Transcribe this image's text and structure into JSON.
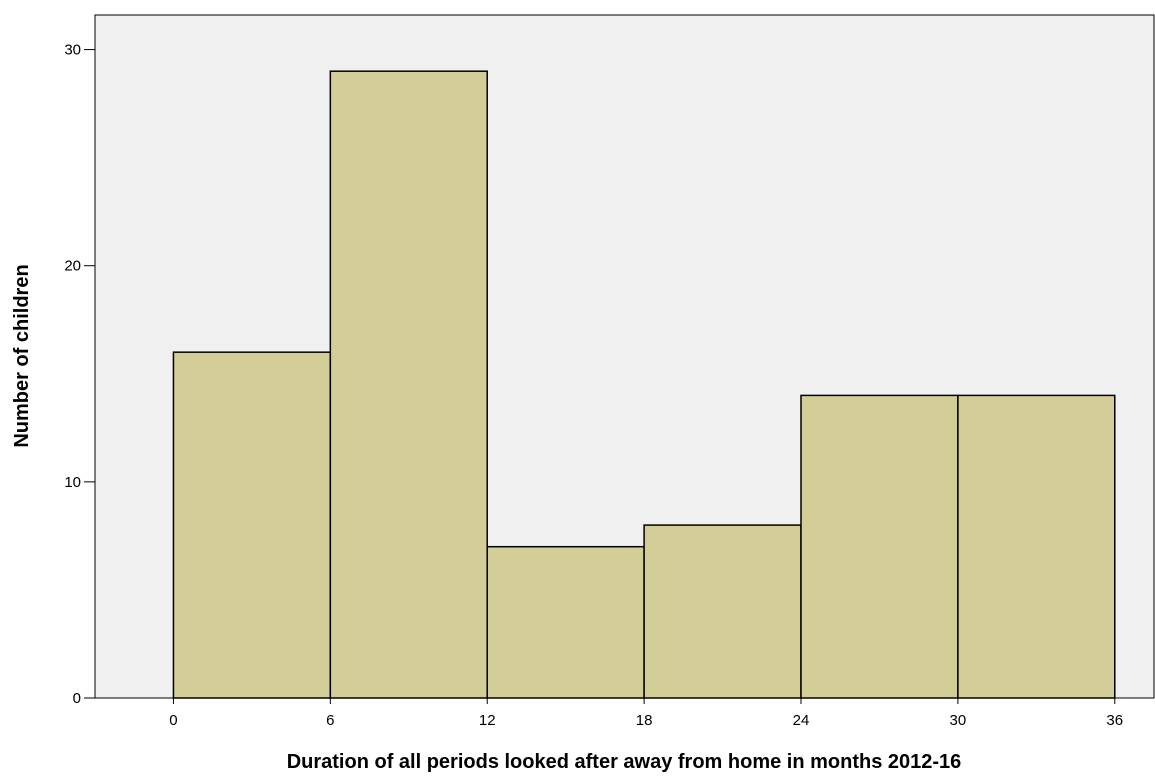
{
  "chart_data": {
    "type": "bar",
    "subtype": "histogram",
    "bin_edges": [
      0,
      6,
      12,
      18,
      24,
      30,
      36
    ],
    "values": [
      16,
      29,
      7,
      8,
      14,
      14
    ],
    "x_ticks": [
      "0",
      "6",
      "12",
      "18",
      "24",
      "30",
      "36"
    ],
    "y_ticks": [
      "0",
      "10",
      "20",
      "30"
    ],
    "y_tick_values": [
      0,
      10,
      20,
      30
    ],
    "xlim": [
      -3,
      37.5
    ],
    "ylim": [
      0,
      31.6
    ],
    "xlabel": "Duration of all periods looked after away from home in months 2012-16",
    "ylabel": "Number of children",
    "grid": false,
    "colors": {
      "bar_fill": "#d3ce97",
      "bar_edge": "#000000",
      "plot_background": "#f0f0f0"
    }
  }
}
